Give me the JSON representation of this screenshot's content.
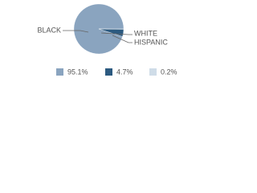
{
  "chart_data": {
    "type": "pie",
    "categories": [
      "BLACK",
      "HISPANIC",
      "WHITE"
    ],
    "values": [
      95.1,
      4.7,
      0.2
    ],
    "value_labels": [
      "95.1%",
      "4.7%",
      "0.2%"
    ],
    "colors": [
      "#8aa4bf",
      "#2c5a80",
      "#cfdce8"
    ]
  }
}
